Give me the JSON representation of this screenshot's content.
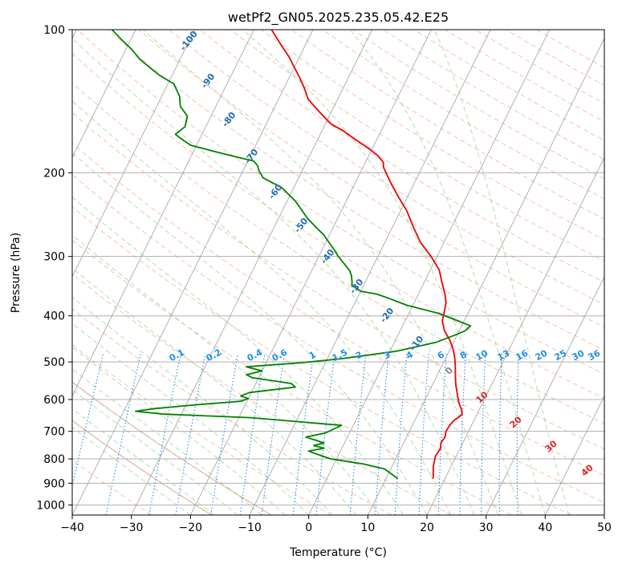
{
  "chart_data": {
    "type": "line",
    "title": "wetPf2_GN05.2025.235.05.42.E25",
    "xlabel": "Temperature (°C)",
    "ylabel": "Pressure (hPa)",
    "xlim": [
      -40,
      50
    ],
    "ylim": [
      1050,
      100
    ],
    "y_scale": "log",
    "skew": "skew-T",
    "grid": true,
    "x_ticks": [
      -40,
      -30,
      -20,
      -10,
      0,
      10,
      20,
      30,
      40,
      50
    ],
    "y_ticks": [
      100,
      200,
      300,
      400,
      500,
      600,
      700,
      800,
      900,
      1000
    ],
    "series": [
      {
        "name": "",
        "color": "#ee0000",
        "points": [
          [
            18,
            880
          ],
          [
            17,
            830
          ],
          [
            16.5,
            790
          ],
          [
            16.7,
            760
          ],
          [
            16.3,
            740
          ],
          [
            16.5,
            720
          ],
          [
            16.2,
            700
          ],
          [
            16.3,
            680
          ],
          [
            16.6,
            665
          ],
          [
            17.5,
            645
          ],
          [
            17,
            630
          ],
          [
            16,
            610
          ],
          [
            15.2,
            590
          ],
          [
            14,
            560
          ],
          [
            13.3,
            540
          ],
          [
            12.8,
            525
          ],
          [
            12.1,
            505
          ],
          [
            11.5,
            490
          ],
          [
            10.5,
            470
          ],
          [
            9.2,
            450
          ],
          [
            7.5,
            430
          ],
          [
            6.3,
            410
          ],
          [
            5.8,
            390
          ],
          [
            5.4,
            375
          ],
          [
            4.5,
            360
          ],
          [
            3,
            340
          ],
          [
            1.5,
            320
          ],
          [
            -1,
            300
          ],
          [
            -4,
            280
          ],
          [
            -6.5,
            260
          ],
          [
            -9,
            240
          ],
          [
            -11.5,
            225
          ],
          [
            -14,
            210
          ],
          [
            -16.5,
            195
          ],
          [
            -17,
            190
          ],
          [
            -18.5,
            184
          ],
          [
            -20.5,
            178
          ],
          [
            -22.5,
            173
          ],
          [
            -24.5,
            168
          ],
          [
            -26.5,
            163
          ],
          [
            -29,
            158
          ],
          [
            -31,
            152
          ],
          [
            -33,
            146
          ],
          [
            -35,
            140
          ],
          [
            -36.5,
            133
          ],
          [
            -38,
            127
          ],
          [
            -40,
            120
          ],
          [
            -41.8,
            114
          ],
          [
            -44,
            108
          ],
          [
            -47,
            100
          ]
        ]
      },
      {
        "name": "",
        "color": "#008000",
        "points": [
          [
            12,
            880
          ],
          [
            9,
            840
          ],
          [
            5,
            820
          ],
          [
            2,
            810
          ],
          [
            -1,
            800
          ],
          [
            -4,
            780
          ],
          [
            -5.4,
            770
          ],
          [
            -3,
            760
          ],
          [
            -5,
            750
          ],
          [
            -3.5,
            740
          ],
          [
            -7,
            720
          ],
          [
            -4,
            705
          ],
          [
            -2,
            680
          ],
          [
            -18,
            655
          ],
          [
            -33,
            644
          ],
          [
            -38,
            635
          ],
          [
            -35,
            627
          ],
          [
            -28,
            615
          ],
          [
            -21,
            605
          ],
          [
            -20,
            597
          ],
          [
            -21.5,
            590
          ],
          [
            -20.3,
            580
          ],
          [
            -13,
            565
          ],
          [
            -14,
            555
          ],
          [
            -21,
            540
          ],
          [
            -22.3,
            532
          ],
          [
            -20,
            522
          ],
          [
            -23,
            512
          ],
          [
            -14,
            502
          ],
          [
            -8,
            493
          ],
          [
            -4,
            485
          ],
          [
            1,
            475
          ],
          [
            4,
            465
          ],
          [
            7,
            455
          ],
          [
            9.5,
            440
          ],
          [
            11,
            430
          ],
          [
            11.5,
            420
          ],
          [
            9,
            410
          ],
          [
            5,
            395
          ],
          [
            -1,
            380
          ],
          [
            -4.5,
            368
          ],
          [
            -7,
            360
          ],
          [
            -10,
            355
          ],
          [
            -12,
            345
          ],
          [
            -12.2,
            340
          ],
          [
            -12.8,
            330
          ],
          [
            -13.5,
            322
          ],
          [
            -15.2,
            310
          ],
          [
            -16.7,
            300
          ],
          [
            -18,
            290
          ],
          [
            -19.5,
            280
          ],
          [
            -21,
            270
          ],
          [
            -23,
            260
          ],
          [
            -25,
            250
          ],
          [
            -28.5,
            230
          ],
          [
            -32,
            215
          ],
          [
            -36,
            205
          ],
          [
            -37.3,
            198
          ],
          [
            -38,
            193
          ],
          [
            -39,
            189
          ],
          [
            -42.5,
            185
          ],
          [
            -46.8,
            180
          ],
          [
            -51,
            175
          ],
          [
            -53,
            170
          ],
          [
            -54.5,
            166
          ],
          [
            -53.5,
            160
          ],
          [
            -54,
            152
          ],
          [
            -56,
            145
          ],
          [
            -57,
            138
          ],
          [
            -59,
            130
          ],
          [
            -62,
            125
          ],
          [
            -64.5,
            120
          ],
          [
            -67,
            115
          ],
          [
            -69,
            110
          ],
          [
            -71.5,
            105
          ],
          [
            -74,
            100
          ]
        ]
      }
    ],
    "mixing_ratio_labels": [
      "0.1",
      "0.2",
      "0.4",
      "0.6",
      "1",
      "1.5",
      "2",
      "3",
      "4",
      "6",
      "8",
      "10",
      "13",
      "16",
      "20",
      "25",
      "30",
      "36"
    ],
    "mixing_ratio_values": [
      0.1,
      0.2,
      0.4,
      0.6,
      1,
      1.5,
      2,
      3,
      4,
      6,
      8,
      10,
      13,
      16,
      20,
      25,
      30,
      36
    ],
    "dry_adiabat_labels": [
      "-100",
      "-90",
      "-80",
      "-70",
      "-60",
      "-50",
      "-40",
      "-30",
      "-20",
      "-10"
    ],
    "moist_adiabat_labels": [
      "0",
      "10",
      "20",
      "30",
      "40"
    ],
    "colors": {
      "temperature": "#ee0000",
      "dewpoint": "#008000",
      "dry_adiabat": "#f4a582",
      "moist_adiabat": "#8fce8f",
      "mixing_ratio": "#1f8ee6",
      "isotherm": "#999999",
      "dry_label": "#1f6fb0",
      "moist_label": "#d62728"
    }
  }
}
